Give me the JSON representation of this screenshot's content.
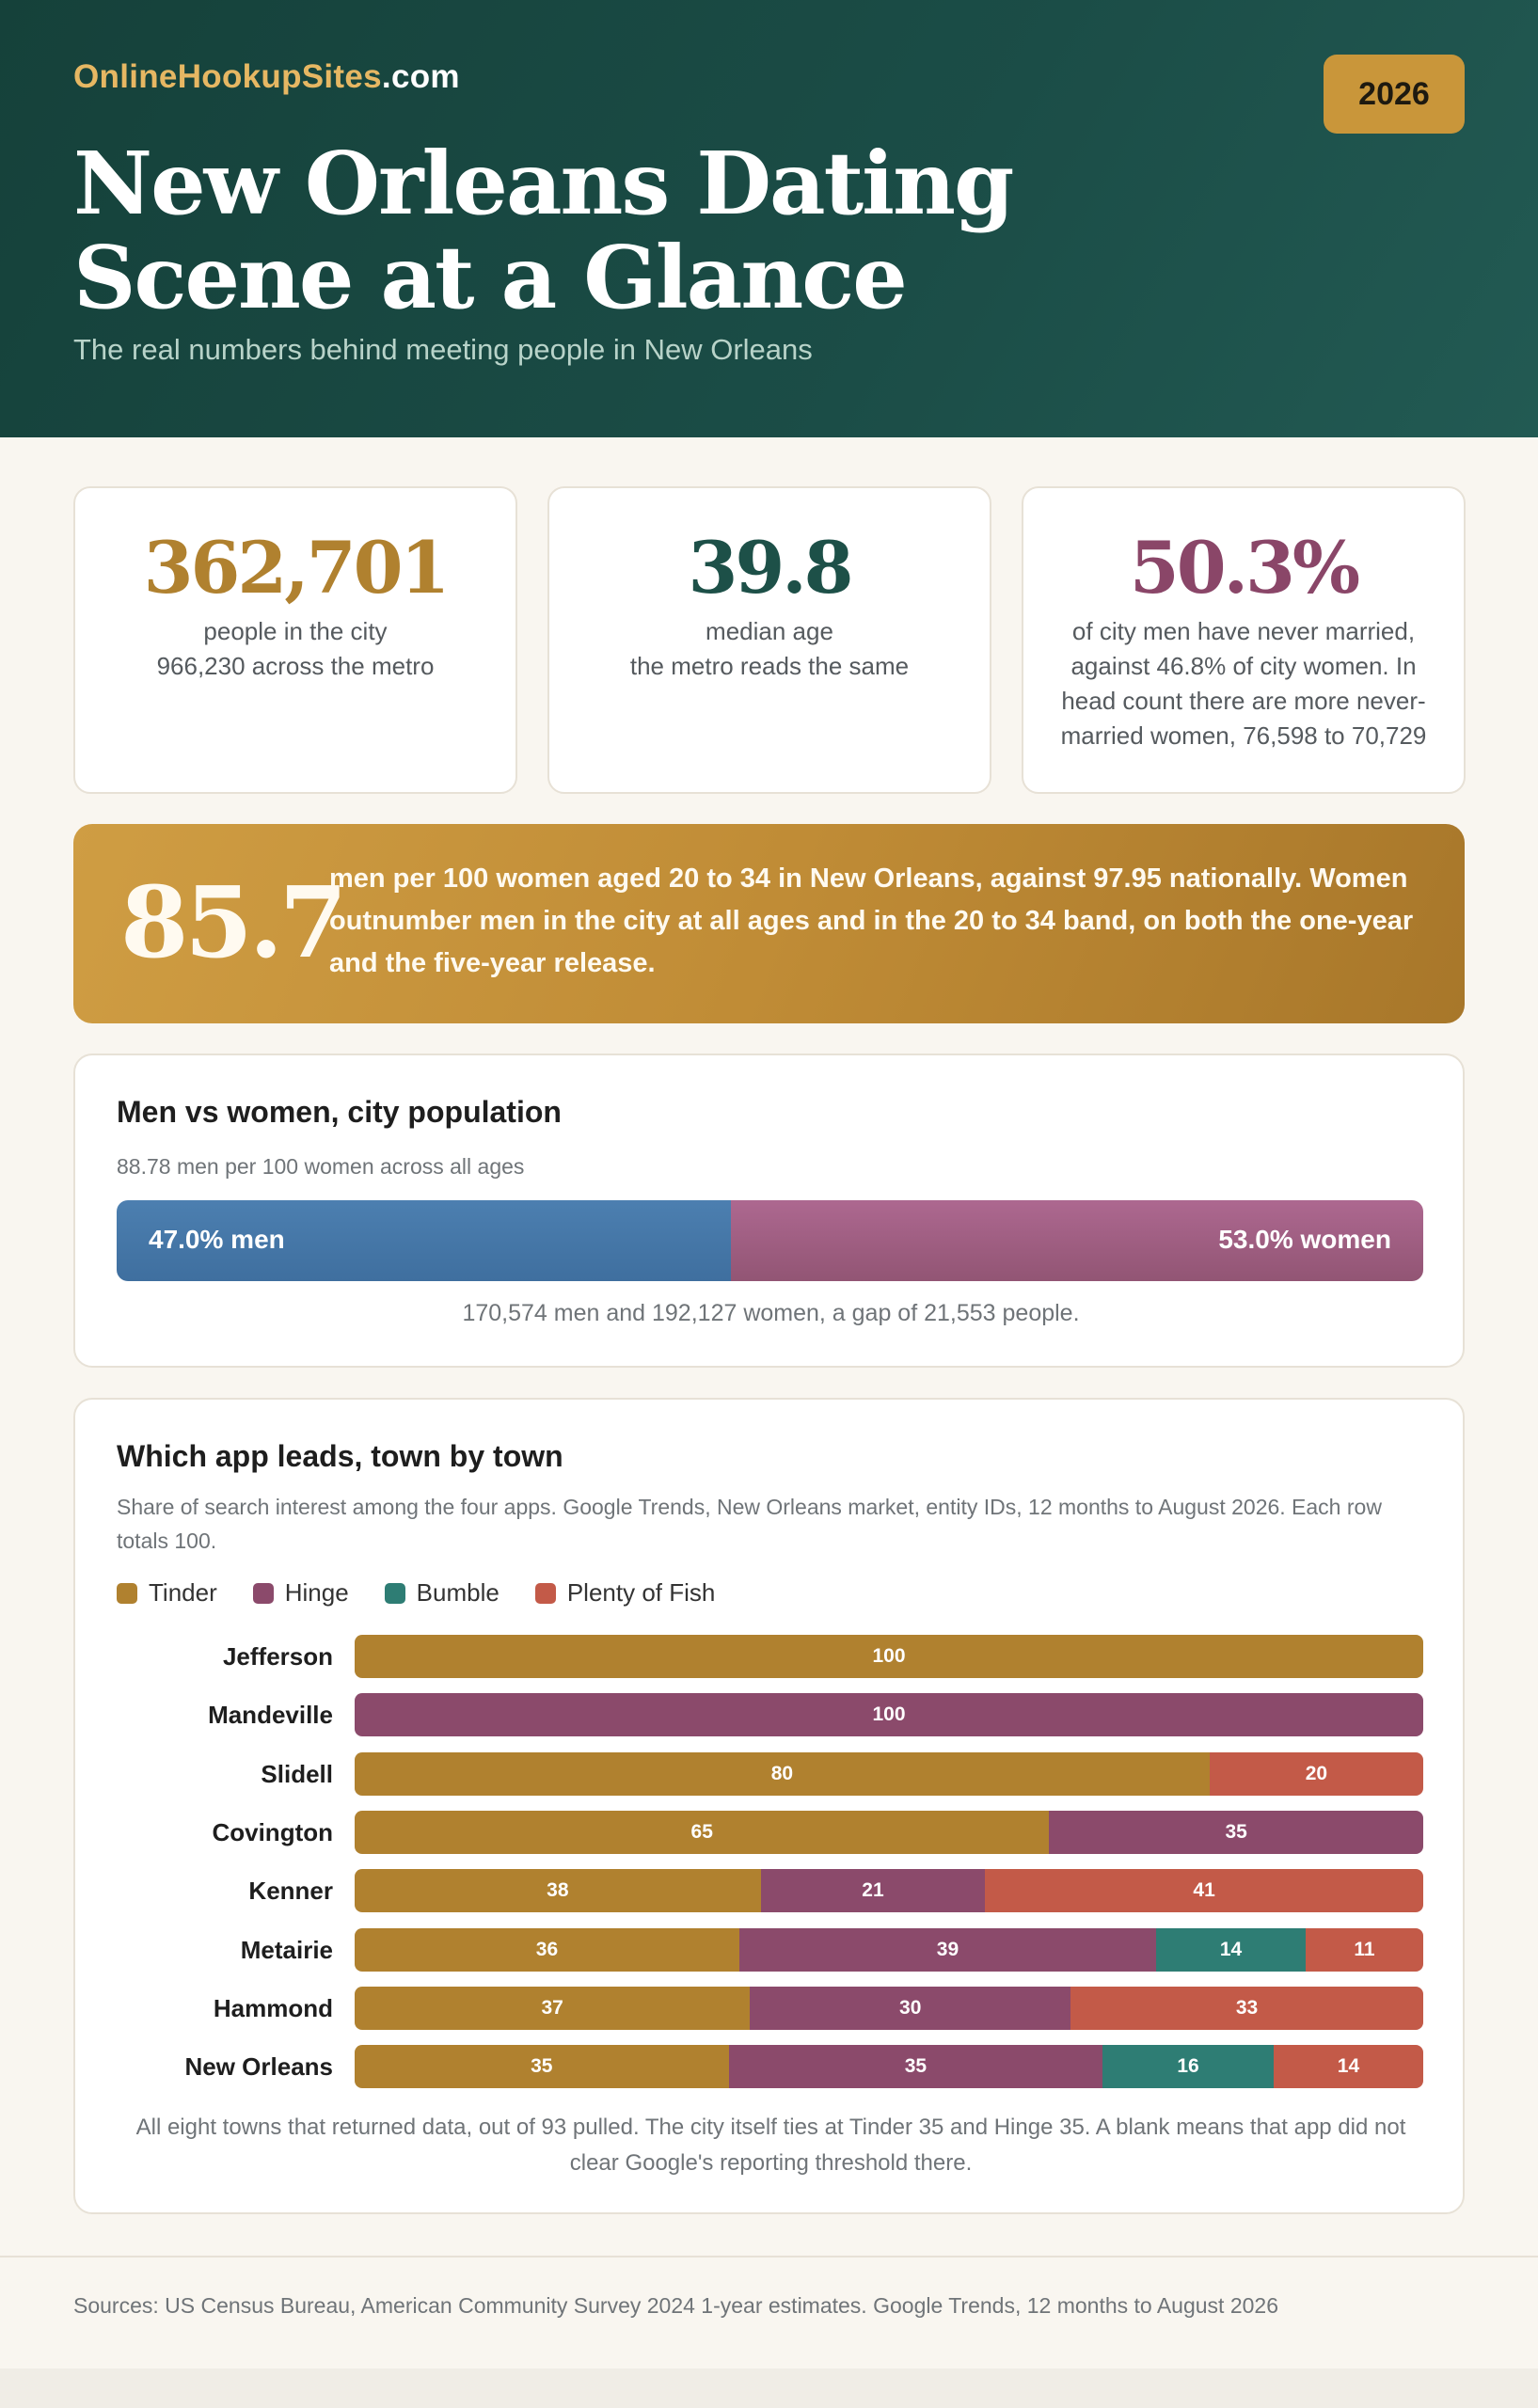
{
  "header": {
    "brand_part1": "OnlineHookupSites",
    "brand_part2": ".com",
    "year": "2026",
    "title": "New Orleans Dating Scene at a Glance",
    "subtitle": "The real numbers behind meeting people in New Orleans"
  },
  "stats": [
    {
      "value": "362,701",
      "label": "people in the city",
      "sub": "966,230 across the metro",
      "color": "#b0812f"
    },
    {
      "value": "39.8",
      "label": "median age",
      "sub": "the metro reads the same",
      "color": "#1d5048"
    },
    {
      "value": "50.3%",
      "label": "of city men have never married, against 46.8% of city women. In head count there are more never-married women, 76,598 to 70,729",
      "sub": "",
      "color": "#8a4668"
    }
  ],
  "ratio_banner": {
    "value": "85.7",
    "text": "men per 100 women aged 20 to 34 in New Orleans, against 97.95 nationally. Women outnumber men in the city at all ages and in the 20 to 34 band, on both the one-year and the five-year release."
  },
  "gender_panel": {
    "title": "Men vs women, city population",
    "note": "88.78 men per 100 women across all ages",
    "men_label": "47.0% men",
    "women_label": "53.0% women",
    "men_share": 47.0,
    "women_share": 53.0,
    "caption": "170,574 men and 192,127 women, a gap of 21,553 people."
  },
  "apps_panel": {
    "title": "Which app leads, town by town",
    "note": "Share of search interest among the four apps. Google Trends, New Orleans market, entity IDs, 12 months to August 2026. Each row totals 100.",
    "footnote": "All eight towns that returned data, out of 93 pulled. The city itself ties at Tinder 35 and Hinge 35. A blank means that app did not clear Google's reporting threshold there."
  },
  "chart_data": {
    "type": "bar",
    "orientation": "horizontal",
    "stacked": true,
    "title": "Which app leads, town by town",
    "categories": [
      "Jefferson",
      "Mandeville",
      "Slidell",
      "Covington",
      "Kenner",
      "Metairie",
      "Hammond",
      "New Orleans"
    ],
    "series": [
      {
        "name": "Tinder",
        "color": "#b0812f",
        "values": [
          100,
          null,
          80,
          65,
          38,
          36,
          37,
          35
        ]
      },
      {
        "name": "Hinge",
        "color": "#8b4a6b",
        "values": [
          null,
          100,
          null,
          35,
          21,
          39,
          30,
          35
        ]
      },
      {
        "name": "Bumble",
        "color": "#2e7d74",
        "values": [
          null,
          null,
          null,
          null,
          null,
          14,
          null,
          16
        ]
      },
      {
        "name": "Plenty of Fish",
        "color": "#c35a48",
        "values": [
          null,
          null,
          20,
          null,
          41,
          11,
          33,
          14
        ]
      }
    ],
    "xlim": [
      0,
      100
    ],
    "legend": "top-left"
  },
  "sources": "Sources: US Census Bureau, American Community Survey 2024 1-year estimates. Google Trends, 12 months to August 2026"
}
